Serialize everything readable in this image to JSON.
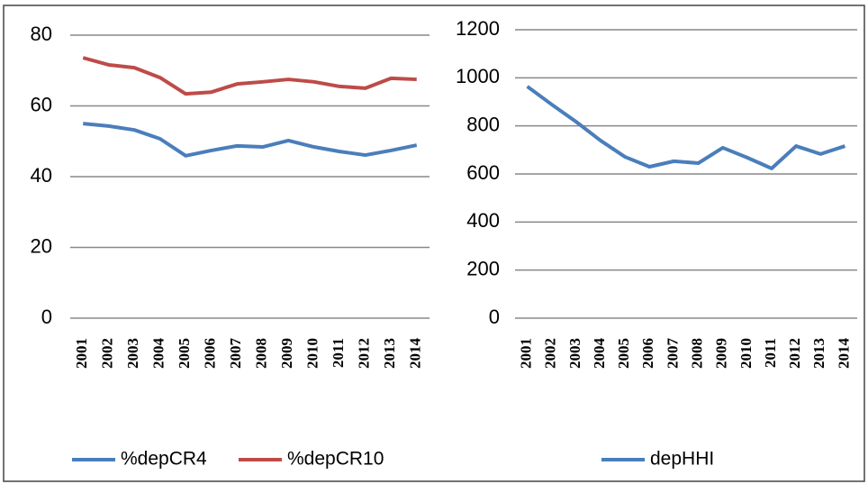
{
  "chart_data": [
    {
      "type": "line",
      "categories": [
        "2001",
        "2002",
        "2003",
        "2004",
        "2005",
        "2006",
        "2007",
        "2008",
        "2009",
        "2010",
        "2011",
        "2012",
        "2013",
        "2014"
      ],
      "series": [
        {
          "name": "%depCR4",
          "color": "#4a7ebb",
          "values": [
            55,
            54.3,
            53.2,
            50.7,
            45.9,
            47.4,
            48.7,
            48.4,
            50.2,
            48.4,
            47.1,
            46.1,
            47.4,
            48.9
          ]
        },
        {
          "name": "%depCR10",
          "color": "#be4b48",
          "values": [
            73.6,
            71.6,
            70.8,
            68,
            63.4,
            63.9,
            66.2,
            66.8,
            67.5,
            66.8,
            65.5,
            65,
            67.8,
            67.5
          ]
        }
      ],
      "ylim": [
        0,
        80
      ],
      "yticks": [
        0,
        20,
        40,
        60,
        80
      ],
      "grid": true,
      "legend": "bottom"
    },
    {
      "type": "line",
      "categories": [
        "2001",
        "2002",
        "2003",
        "2004",
        "2005",
        "2006",
        "2007",
        "2008",
        "2009",
        "2010",
        "2011",
        "2012",
        "2013",
        "2014"
      ],
      "series": [
        {
          "name": "depHHI",
          "color": "#4a7ebb",
          "values": [
            964,
            889,
            817,
            739,
            671,
            630,
            653,
            645,
            709,
            668,
            623,
            716,
            683,
            716
          ]
        }
      ],
      "ylim": [
        0,
        1200
      ],
      "yticks": [
        0,
        200,
        400,
        600,
        800,
        1000,
        1200
      ],
      "grid": true,
      "legend": "bottom"
    }
  ]
}
